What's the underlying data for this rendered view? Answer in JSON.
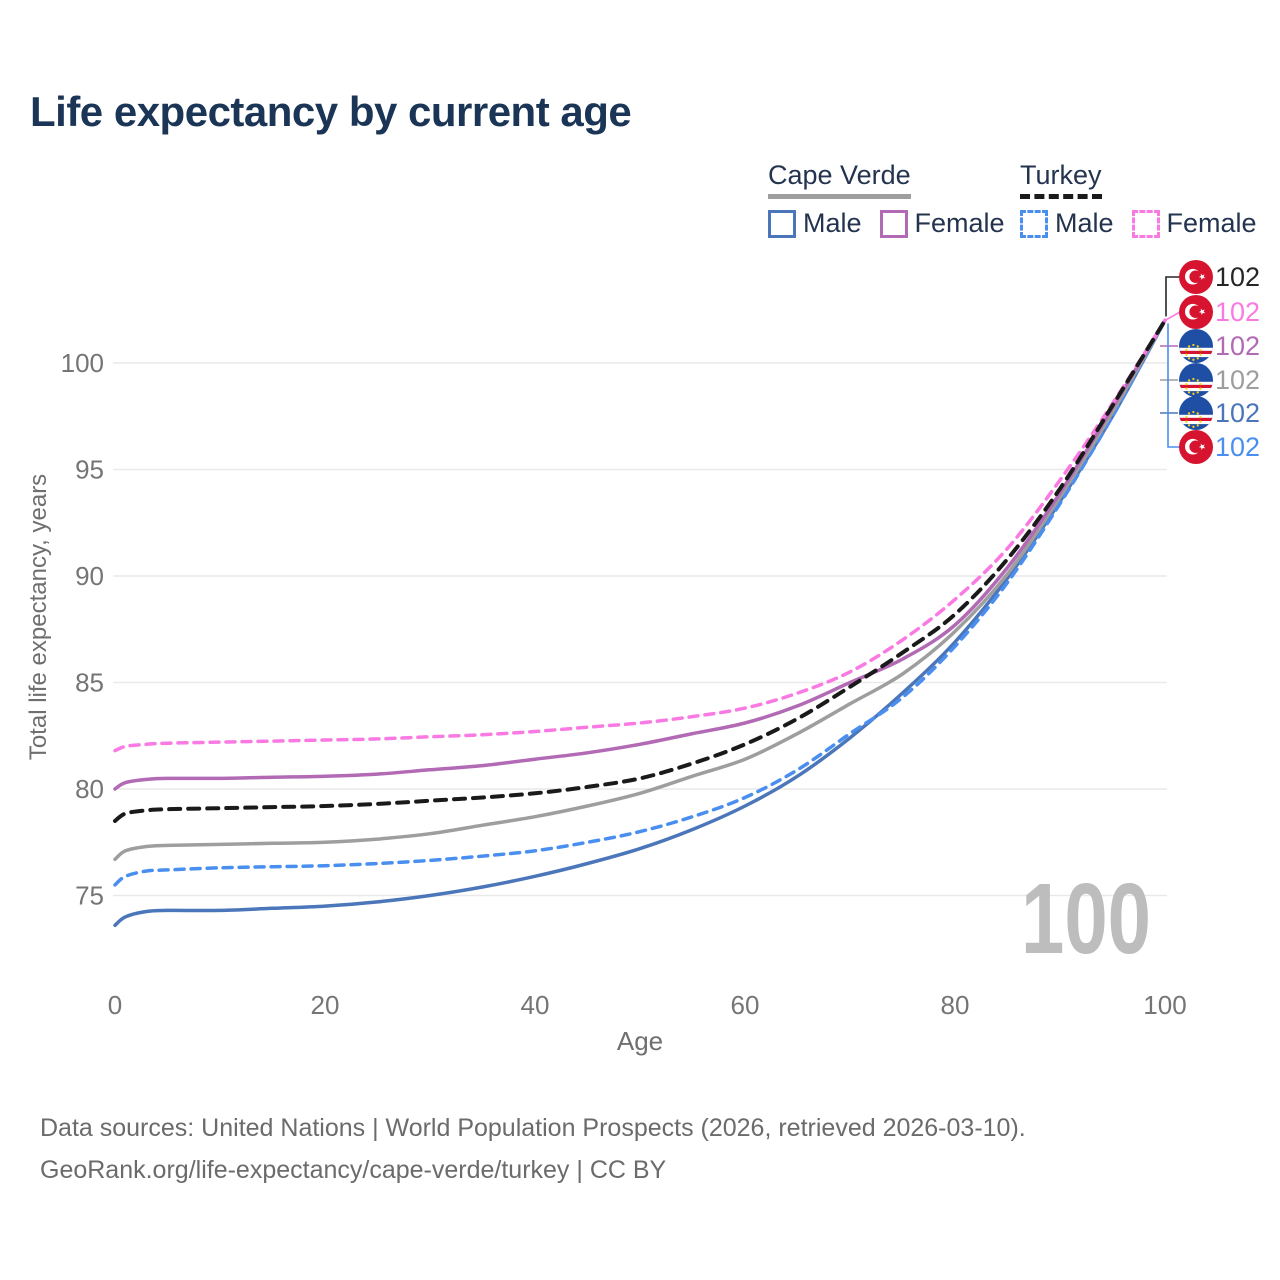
{
  "title": "Life expectancy by current age",
  "legend": {
    "groups": [
      {
        "country": "Cape Verde",
        "style": "solid",
        "color": "#9e9e9e",
        "items": [
          {
            "label": "Male",
            "color": "#4b76ba",
            "dashed": false
          },
          {
            "label": "Female",
            "color": "#b26ab5",
            "dashed": false
          }
        ]
      },
      {
        "country": "Turkey",
        "style": "dashed",
        "color": "#1a1a1a",
        "items": [
          {
            "label": "Male",
            "color": "#4a8ff0",
            "dashed": true
          },
          {
            "label": "Female",
            "color": "#f97ae3",
            "dashed": true
          }
        ]
      }
    ]
  },
  "age_indicator": "100",
  "end_labels": [
    {
      "value": "102",
      "flag": "turkey",
      "color": "#262626",
      "series": "turkey-both"
    },
    {
      "value": "102",
      "flag": "turkey",
      "color": "#f97ae3",
      "series": "turkey-female"
    },
    {
      "value": "102",
      "flag": "cape-verde",
      "color": "#b26ab5",
      "series": "cape-verde-female"
    },
    {
      "value": "102",
      "flag": "cape-verde",
      "color": "#9e9e9e",
      "series": "cape-verde-both"
    },
    {
      "value": "102",
      "flag": "cape-verde",
      "color": "#4b76ba",
      "series": "cape-verde-male"
    },
    {
      "value": "102",
      "flag": "turkey",
      "color": "#4a8ff0",
      "series": "turkey-male"
    }
  ],
  "footer": {
    "line1": "Data sources: United Nations | World Population Prospects (2026, retrieved 2026-03-10).",
    "line2": "GeoRank.org/life-expectancy/cape-verde/turkey | CC BY"
  },
  "chart_data": {
    "type": "line",
    "title": "Life expectancy by current age",
    "xlabel": "Age",
    "ylabel": "Total life expectancy, years",
    "xlim": [
      0,
      100
    ],
    "x_ticks": [
      0,
      20,
      40,
      60,
      80,
      100
    ],
    "y_ticks": [
      75,
      80,
      85,
      90,
      95,
      100
    ],
    "grid": true,
    "legend_position": "top-right",
    "x": [
      0,
      1,
      3,
      5,
      10,
      15,
      20,
      25,
      30,
      35,
      40,
      45,
      50,
      55,
      60,
      65,
      70,
      75,
      80,
      85,
      90,
      95,
      100
    ],
    "series": [
      {
        "id": "cape-verde-male",
        "name": "Cape Verde Male",
        "color": "#4b76ba",
        "dashed": false,
        "width": 3.5,
        "values": [
          73.6,
          74.0,
          74.25,
          74.3,
          74.3,
          74.4,
          74.5,
          74.7,
          75.0,
          75.4,
          75.9,
          76.5,
          77.2,
          78.1,
          79.2,
          80.6,
          82.4,
          84.5,
          86.9,
          89.9,
          93.5,
          97.5,
          102
        ]
      },
      {
        "id": "turkey-male",
        "name": "Turkey Male",
        "color": "#4a8ff0",
        "dashed": true,
        "width": 3.5,
        "values": [
          75.5,
          75.9,
          76.15,
          76.2,
          76.3,
          76.35,
          76.4,
          76.5,
          76.65,
          76.85,
          77.1,
          77.5,
          78.0,
          78.7,
          79.6,
          80.9,
          82.6,
          84.3,
          86.7,
          89.7,
          93.4,
          97.5,
          102
        ]
      },
      {
        "id": "cape-verde-both",
        "name": "Cape Verde",
        "color": "#9e9e9e",
        "dashed": false,
        "width": 3.5,
        "values": [
          76.7,
          77.1,
          77.3,
          77.35,
          77.4,
          77.45,
          77.5,
          77.65,
          77.9,
          78.3,
          78.7,
          79.2,
          79.8,
          80.6,
          81.4,
          82.6,
          84.0,
          85.4,
          87.4,
          90.1,
          93.7,
          97.7,
          102
        ]
      },
      {
        "id": "cape-verde-female",
        "name": "Cape Verde Female",
        "color": "#b26ab5",
        "dashed": false,
        "width": 3.5,
        "values": [
          80.0,
          80.3,
          80.45,
          80.5,
          80.5,
          80.55,
          80.6,
          80.7,
          80.9,
          81.1,
          81.4,
          81.7,
          82.1,
          82.6,
          83.1,
          83.9,
          85.0,
          86.1,
          87.7,
          90.4,
          93.9,
          97.9,
          102
        ]
      },
      {
        "id": "turkey-female",
        "name": "Turkey Female",
        "color": "#f97ae3",
        "dashed": true,
        "width": 3.5,
        "values": [
          81.8,
          82.0,
          82.1,
          82.15,
          82.2,
          82.25,
          82.3,
          82.35,
          82.45,
          82.55,
          82.7,
          82.9,
          83.1,
          83.4,
          83.8,
          84.5,
          85.5,
          87.0,
          88.9,
          91.3,
          94.5,
          98.1,
          102
        ]
      },
      {
        "id": "turkey-both",
        "name": "Turkey",
        "color": "#1a1a1a",
        "dashed": true,
        "width": 4,
        "values": [
          78.5,
          78.85,
          79.0,
          79.05,
          79.1,
          79.15,
          79.2,
          79.3,
          79.45,
          79.6,
          79.8,
          80.1,
          80.5,
          81.2,
          82.1,
          83.3,
          84.8,
          86.4,
          88.2,
          90.8,
          94.1,
          98.0,
          102
        ]
      }
    ]
  }
}
